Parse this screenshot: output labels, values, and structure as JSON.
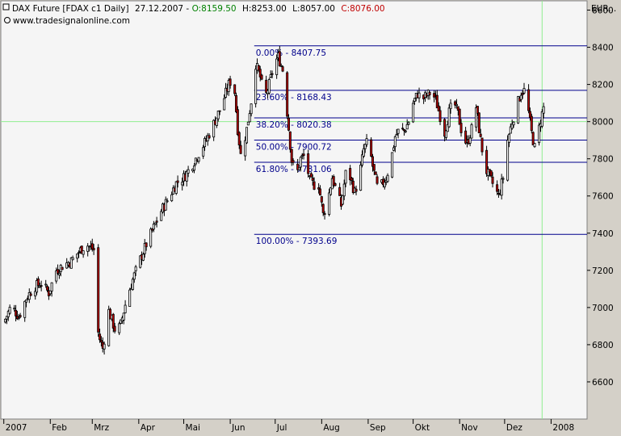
{
  "header": {
    "symbol": "DAX Future [FDAX c1  Daily]",
    "date": "27.12.2007",
    "open_label": "O:8159.50",
    "high_label": "H:8253.00",
    "low_label": "L:8057.00",
    "close_label": "C:8076.00",
    "source": "www.tradesignalonline.com",
    "currency": "EUR..."
  },
  "colors": {
    "up_candle": "#ffffff",
    "down_candle": "#c00000",
    "open_text": "#008000",
    "close_text": "#c00000",
    "fib_lines": "#00008b",
    "crosshair": "#90ee90",
    "plot_bg": "#f5f5f5",
    "frame_bg": "#d4d0c8"
  },
  "chart_data": {
    "type": "candlestick",
    "ylim": [
      6400,
      8650
    ],
    "y_ticks": [
      6600,
      6800,
      7000,
      7200,
      7400,
      7600,
      7800,
      8000,
      8200,
      8400,
      8600
    ],
    "x_tick_labels": [
      "2007",
      "Feb",
      "Mrz",
      "Apr",
      "Mai",
      "Jun",
      "Jul",
      "Aug",
      "Sep",
      "Okt",
      "Nov",
      "Dez",
      "2008"
    ],
    "x_tick_days": [
      0,
      31,
      59,
      90,
      120,
      151,
      181,
      212,
      243,
      273,
      304,
      334,
      365
    ],
    "x_range_days": [
      -2,
      389
    ],
    "crosshair": {
      "day": 359,
      "price": 8000
    },
    "fibonacci": [
      {
        "label": "0.00% - 8407.75",
        "price": 8407.75
      },
      {
        "label": "23.60% - 8168.43",
        "price": 8168.43
      },
      {
        "label": "38.20% - 8020.38",
        "price": 8020.38
      },
      {
        "label": "50.00% - 7900.72",
        "price": 7900.72
      },
      {
        "label": "61.80% - 7781.06",
        "price": 7781.06
      },
      {
        "label": "100.00% - 7393.69",
        "price": 7393.69
      }
    ],
    "fib_x_start_day": 167,
    "close_path": [
      [
        0,
        6920
      ],
      [
        5,
        7010
      ],
      [
        10,
        6950
      ],
      [
        15,
        7050
      ],
      [
        20,
        7110
      ],
      [
        25,
        7130
      ],
      [
        30,
        7080
      ],
      [
        35,
        7200
      ],
      [
        40,
        7230
      ],
      [
        45,
        7250
      ],
      [
        50,
        7300
      ],
      [
        55,
        7340
      ],
      [
        60,
        7310
      ],
      [
        62,
        6900
      ],
      [
        64,
        6830
      ],
      [
        66,
        6780
      ],
      [
        70,
        6980
      ],
      [
        75,
        6860
      ],
      [
        78,
        6910
      ],
      [
        82,
        7050
      ],
      [
        86,
        7150
      ],
      [
        90,
        7240
      ],
      [
        95,
        7340
      ],
      [
        100,
        7430
      ],
      [
        105,
        7520
      ],
      [
        110,
        7590
      ],
      [
        115,
        7670
      ],
      [
        120,
        7700
      ],
      [
        125,
        7760
      ],
      [
        130,
        7830
      ],
      [
        135,
        7900
      ],
      [
        140,
        7990
      ],
      [
        145,
        8080
      ],
      [
        150,
        8200
      ],
      [
        152,
        8230
      ],
      [
        154,
        8160
      ],
      [
        156,
        7960
      ],
      [
        158,
        7820
      ],
      [
        160,
        7880
      ],
      [
        162,
        7960
      ],
      [
        165,
        8110
      ],
      [
        168,
        8310
      ],
      [
        171,
        8240
      ],
      [
        174,
        8120
      ],
      [
        177,
        8200
      ],
      [
        180,
        8300
      ],
      [
        183,
        8350
      ],
      [
        186,
        8280
      ],
      [
        189,
        8050
      ],
      [
        192,
        7790
      ],
      [
        195,
        7700
      ],
      [
        198,
        7800
      ],
      [
        201,
        7820
      ],
      [
        204,
        7680
      ],
      [
        207,
        7660
      ],
      [
        210,
        7660
      ],
      [
        213,
        7500
      ],
      [
        216,
        7570
      ],
      [
        219,
        7700
      ],
      [
        222,
        7620
      ],
      [
        225,
        7550
      ],
      [
        228,
        7720
      ],
      [
        231,
        7700
      ],
      [
        234,
        7620
      ],
      [
        237,
        7700
      ],
      [
        240,
        7850
      ],
      [
        243,
        7900
      ],
      [
        246,
        7760
      ],
      [
        249,
        7650
      ],
      [
        252,
        7660
      ],
      [
        255,
        7700
      ],
      [
        258,
        7780
      ],
      [
        261,
        7920
      ],
      [
        264,
        7960
      ],
      [
        267,
        7950
      ],
      [
        270,
        8000
      ],
      [
        273,
        8100
      ],
      [
        276,
        8150
      ],
      [
        279,
        8120
      ],
      [
        282,
        8140
      ],
      [
        285,
        8160
      ],
      [
        288,
        8120
      ],
      [
        291,
        8030
      ],
      [
        294,
        7940
      ],
      [
        297,
        8050
      ],
      [
        300,
        8110
      ],
      [
        303,
        8040
      ],
      [
        306,
        7920
      ],
      [
        309,
        7880
      ],
      [
        312,
        7960
      ],
      [
        315,
        8080
      ],
      [
        318,
        7900
      ],
      [
        321,
        7750
      ],
      [
        324,
        7700
      ],
      [
        327,
        7650
      ],
      [
        330,
        7600
      ],
      [
        333,
        7700
      ],
      [
        336,
        7900
      ],
      [
        339,
        8000
      ],
      [
        342,
        8080
      ],
      [
        345,
        8160
      ],
      [
        348,
        8170
      ],
      [
        350,
        8050
      ],
      [
        352,
        7940
      ],
      [
        354,
        7860
      ],
      [
        356,
        7920
      ],
      [
        358,
        8010
      ],
      [
        360,
        8076
      ]
    ]
  }
}
